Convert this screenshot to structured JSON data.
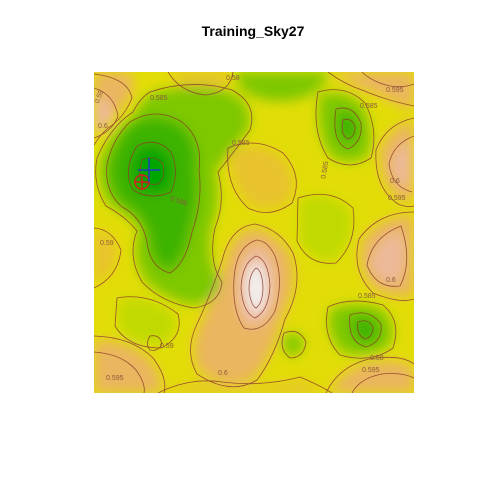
{
  "window": {
    "title": "Training_Sky27"
  },
  "chart_data": {
    "type": "heatmap",
    "title": "Training_Sky27",
    "xlabel": "",
    "ylabel": "",
    "colormap": [
      "#00a600",
      "#3cb400",
      "#7ec800",
      "#c0da00",
      "#e6e600",
      "#e8c32e",
      "#eab65f",
      "#ecb99a",
      "#f0d2c8",
      "#f2f2f2"
    ],
    "contour_color": "#8b3a2a",
    "contour_levels_labeled": [
      "0.58",
      "0.585",
      "0.59",
      "0.595",
      "0.6"
    ],
    "contour_labels": [
      {
        "text": "0.585"
      },
      {
        "text": "0.59"
      },
      {
        "text": "0.6"
      },
      {
        "text": "0.58"
      },
      {
        "text": "0.585"
      },
      {
        "text": "0.595"
      },
      {
        "text": "0.585"
      },
      {
        "text": "0.6"
      },
      {
        "text": "0.595"
      },
      {
        "text": "0.585"
      },
      {
        "text": "0.59"
      },
      {
        "text": "0.6"
      },
      {
        "text": "0.585"
      },
      {
        "text": "0.59"
      },
      {
        "text": "0.585"
      },
      {
        "text": "0.6"
      },
      {
        "text": "0.595"
      },
      {
        "text": "0.58"
      },
      {
        "text": "0.595"
      }
    ],
    "markers": [
      {
        "name": "plus-marker",
        "color": "#1f3fbf"
      },
      {
        "name": "circle-marker",
        "color": "#d22020"
      }
    ]
  }
}
